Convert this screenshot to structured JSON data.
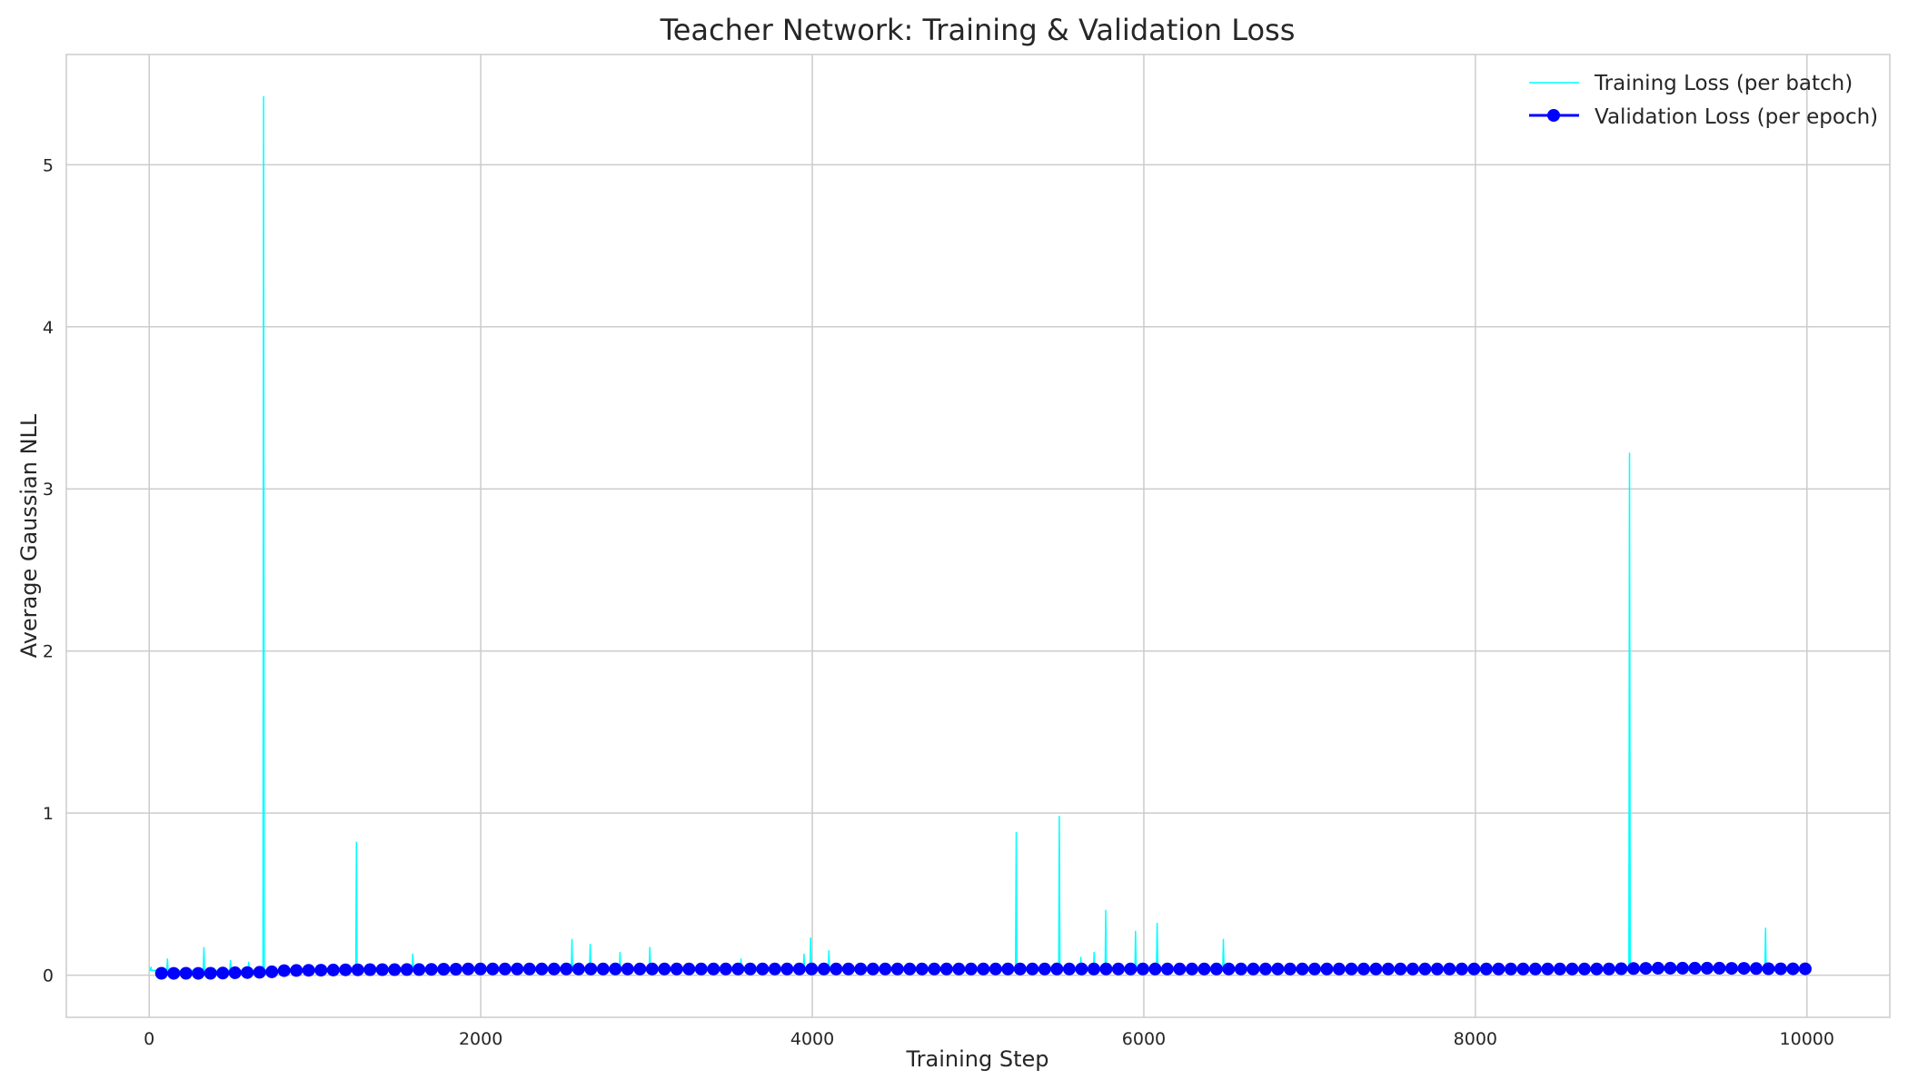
{
  "chart_data": {
    "type": "line",
    "title": "Teacher Network: Training & Validation Loss",
    "xlabel": "Training Step",
    "ylabel": "Average Gaussian NLL",
    "xlim": [
      -500,
      10500
    ],
    "ylim": [
      -0.26,
      5.68
    ],
    "xticks": [
      0,
      2000,
      4000,
      6000,
      8000,
      10000
    ],
    "yticks": [
      0,
      1,
      2,
      3,
      4,
      5
    ],
    "grid": true,
    "legend_position": "top-right",
    "series": [
      {
        "name": "Training Loss (per batch)",
        "style": "line",
        "color": "#00ffff",
        "baseline": 0.03,
        "spikes": [
          {
            "x": 10,
            "y": 0.05
          },
          {
            "x": 110,
            "y": 0.1
          },
          {
            "x": 330,
            "y": 0.17
          },
          {
            "x": 490,
            "y": 0.09
          },
          {
            "x": 600,
            "y": 0.08
          },
          {
            "x": 690,
            "y": 5.42
          },
          {
            "x": 1250,
            "y": 0.82
          },
          {
            "x": 1590,
            "y": 0.13
          },
          {
            "x": 2550,
            "y": 0.22
          },
          {
            "x": 2660,
            "y": 0.19
          },
          {
            "x": 2840,
            "y": 0.14
          },
          {
            "x": 3020,
            "y": 0.17
          },
          {
            "x": 3570,
            "y": 0.1
          },
          {
            "x": 3950,
            "y": 0.13
          },
          {
            "x": 3990,
            "y": 0.23
          },
          {
            "x": 4100,
            "y": 0.15
          },
          {
            "x": 5230,
            "y": 0.88
          },
          {
            "x": 5490,
            "y": 0.98
          },
          {
            "x": 5620,
            "y": 0.11
          },
          {
            "x": 5700,
            "y": 0.14
          },
          {
            "x": 5770,
            "y": 0.4
          },
          {
            "x": 5950,
            "y": 0.27
          },
          {
            "x": 6080,
            "y": 0.32
          },
          {
            "x": 6480,
            "y": 0.22
          },
          {
            "x": 8930,
            "y": 3.22
          },
          {
            "x": 9750,
            "y": 0.29
          }
        ]
      },
      {
        "name": "Validation Loss (per epoch)",
        "style": "line-marker",
        "color": "#0000ff",
        "x_start": 74,
        "x_step": 74,
        "count": 135,
        "values": [
          0.012,
          0.011,
          0.012,
          0.011,
          0.012,
          0.013,
          0.015,
          0.016,
          0.018,
          0.021,
          0.028,
          0.029,
          0.03,
          0.031,
          0.032,
          0.033,
          0.033,
          0.034,
          0.034,
          0.034,
          0.035,
          0.035,
          0.036,
          0.037,
          0.037,
          0.038,
          0.038,
          0.038,
          0.038,
          0.038,
          0.038,
          0.038,
          0.038,
          0.038,
          0.038,
          0.038,
          0.038,
          0.038,
          0.038,
          0.038,
          0.038,
          0.038,
          0.038,
          0.038,
          0.038,
          0.038,
          0.038,
          0.038,
          0.038,
          0.038,
          0.038,
          0.038,
          0.038,
          0.038,
          0.038,
          0.038,
          0.038,
          0.038,
          0.038,
          0.038,
          0.038,
          0.038,
          0.038,
          0.038,
          0.038,
          0.038,
          0.038,
          0.038,
          0.038,
          0.038,
          0.038,
          0.038,
          0.038,
          0.038,
          0.038,
          0.038,
          0.038,
          0.038,
          0.038,
          0.038,
          0.038,
          0.038,
          0.038,
          0.038,
          0.038,
          0.038,
          0.038,
          0.038,
          0.038,
          0.038,
          0.038,
          0.038,
          0.038,
          0.038,
          0.038,
          0.038,
          0.038,
          0.038,
          0.038,
          0.038,
          0.038,
          0.038,
          0.038,
          0.038,
          0.038,
          0.038,
          0.038,
          0.038,
          0.038,
          0.038,
          0.038,
          0.038,
          0.038,
          0.038,
          0.038,
          0.038,
          0.038,
          0.038,
          0.038,
          0.04,
          0.041,
          0.042,
          0.043,
          0.043,
          0.043,
          0.043,
          0.043,
          0.043,
          0.042,
          0.042,
          0.041,
          0.04,
          0.039,
          0.039,
          0.039
        ]
      }
    ]
  }
}
